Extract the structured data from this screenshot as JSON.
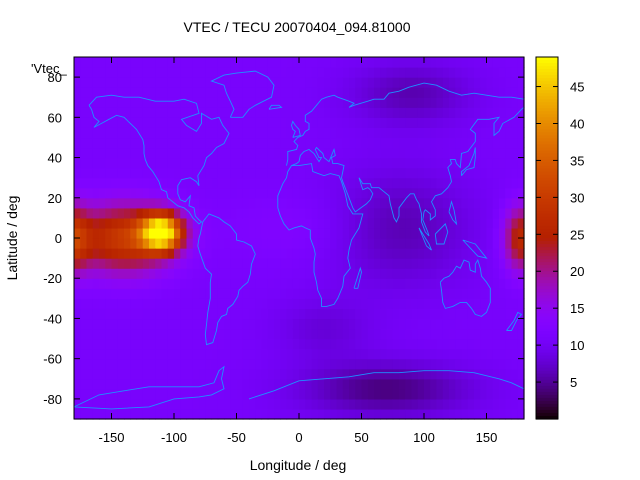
{
  "chart_data": {
    "type": "heatmap",
    "title": "VTEC / TECU 20070404_094.81000",
    "xlabel": "Longitude / deg",
    "ylabel": "Latitude / deg",
    "key_label": "'Vtec_",
    "xlim": [
      -180,
      180
    ],
    "ylim": [
      -90,
      90
    ],
    "xticks": [
      -150,
      -100,
      -50,
      0,
      50,
      100,
      150
    ],
    "yticks": [
      -80,
      -60,
      -40,
      -20,
      0,
      20,
      40,
      60,
      80
    ],
    "colorbar": {
      "min": 0,
      "max": 49,
      "ticks": [
        5,
        10,
        15,
        20,
        25,
        30,
        35,
        40,
        45
      ]
    },
    "grid": false,
    "coastlines_color": "#1e90ff",
    "field_features": [
      {
        "region": "equatorial anomaly over East Pacific",
        "lon": -110,
        "lat": 3,
        "peak_tecu": 47
      },
      {
        "region": "tropical Pacific band",
        "lon": -140,
        "lat": 0,
        "peak_tecu": 32
      },
      {
        "region": "western Pacific (date-line wrap)",
        "lon": 178,
        "lat": 0,
        "peak_tecu": 27
      },
      {
        "region": "equatorial Atlantic / Africa band",
        "lon": 0,
        "lat": 5,
        "peak_tecu": 13
      },
      {
        "region": "polar / night-side minimum",
        "lon": 70,
        "lat": -75,
        "peak_tecu": 2
      }
    ]
  }
}
